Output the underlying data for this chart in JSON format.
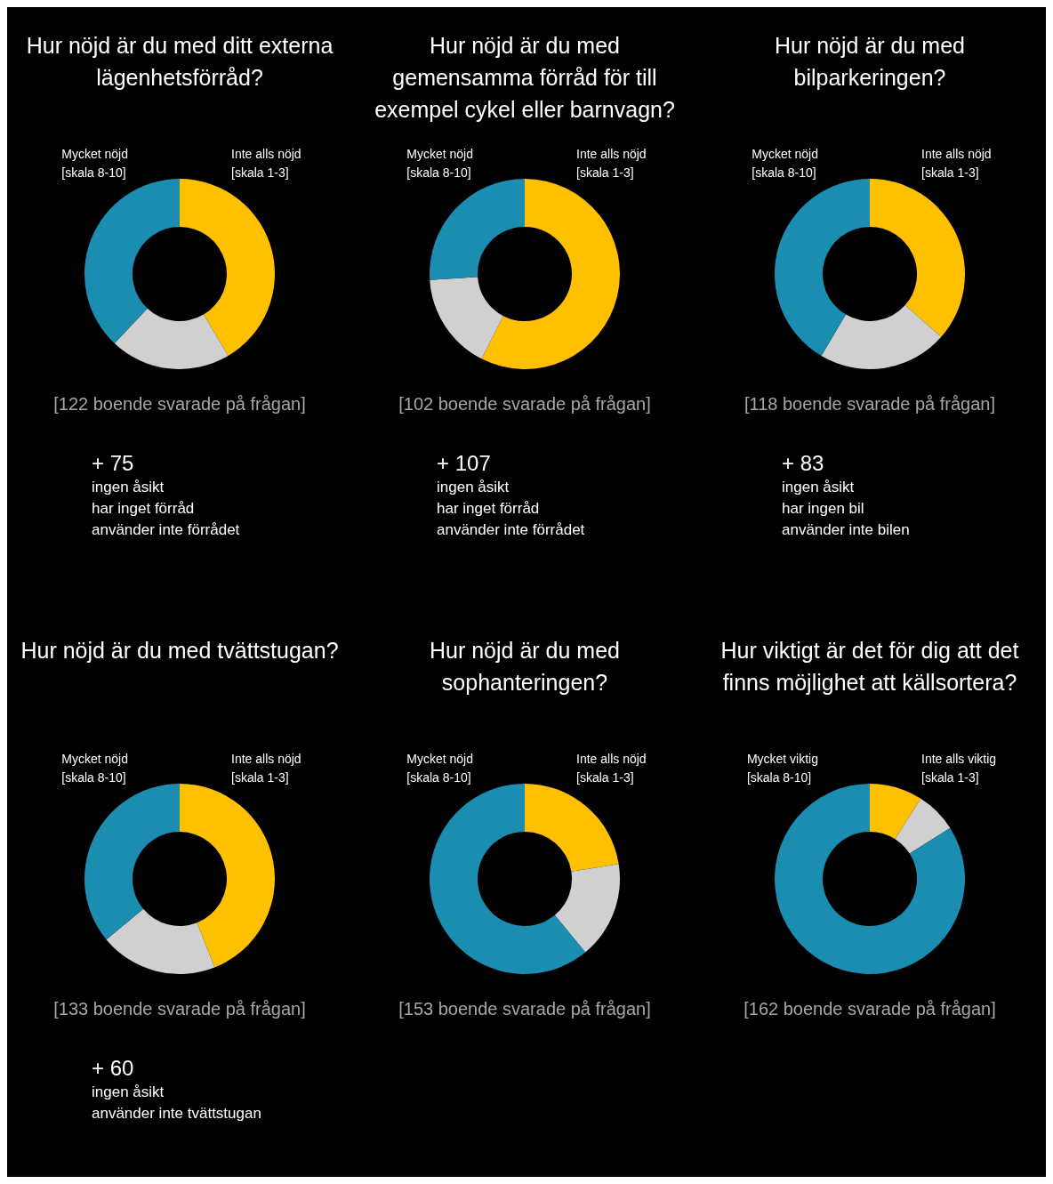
{
  "chart_data": [
    {
      "type": "donut",
      "title": "Hur nöjd är du med ditt externa lägenhetsförråd?",
      "categories": [
        "Inte alls nöjd\n[skala 1-3]",
        null,
        "Mycket nöjd\n[skala 8-10]"
      ],
      "values": [
        41.5,
        20.5,
        38
      ],
      "colors": [
        "#ffc000",
        "#d0d0d0",
        "#1b8db0"
      ],
      "legend": false,
      "annotations": [
        "[122 boende svarade på frågan]",
        "+ 75",
        "ingen åsikt",
        "har inget förråd",
        "använder inte förrådet"
      ]
    },
    {
      "type": "donut",
      "title": "Hur nöjd är du med gemensamma förråd för till exempel cykel eller barnvagn?",
      "categories": [
        "Inte alls nöjd\n[skala 1-3]",
        null,
        "Mycket nöjd\n[skala 8-10]"
      ],
      "values": [
        57.5,
        16.5,
        26
      ],
      "colors": [
        "#ffc000",
        "#d0d0d0",
        "#1b8db0"
      ],
      "legend": false,
      "annotations": [
        "[102 boende svarade på frågan]",
        "+ 107",
        "ingen åsikt",
        "har inget förråd",
        "använder inte förrådet"
      ]
    },
    {
      "type": "donut",
      "title": "Hur nöjd är du med bilparkeringen?",
      "categories": [
        "Inte alls nöjd\n[skala 1-3]",
        null,
        "Mycket nöjd\n[skala 8-10]"
      ],
      "values": [
        36.5,
        22,
        41.5
      ],
      "colors": [
        "#ffc000",
        "#d0d0d0",
        "#1b8db0"
      ],
      "legend": false,
      "annotations": [
        "[118 boende svarade på frågan]",
        "+ 83",
        "ingen åsikt",
        "har ingen bil",
        "använder inte bilen"
      ]
    },
    {
      "type": "donut",
      "title": "Hur nöjd är du med tvättstugan?",
      "categories": [
        "Inte alls nöjd\n[skala 1-3]",
        null,
        "Mycket nöjd\n[skala 8-10]"
      ],
      "values": [
        44,
        20,
        36
      ],
      "colors": [
        "#ffc000",
        "#d0d0d0",
        "#1b8db0"
      ],
      "legend": false,
      "annotations": [
        "[133 boende svarade på frågan]",
        "+ 60",
        "ingen åsikt",
        "använder inte tvättstugan"
      ]
    },
    {
      "type": "donut",
      "title": "Hur nöjd är du med sophanteringen?",
      "categories": [
        "Inte alls nöjd\n[skala 1-3]",
        null,
        "Mycket nöjd\n[skala 8-10]"
      ],
      "values": [
        22.5,
        16.5,
        61
      ],
      "colors": [
        "#ffc000",
        "#d0d0d0",
        "#1b8db0"
      ],
      "legend": false,
      "annotations": [
        "[153 boende svarade på frågan]"
      ]
    },
    {
      "type": "donut",
      "title": "Hur viktigt är det för dig att det finns möjlighet att källsortera?",
      "categories": [
        "Inte alls viktig\n[skala 1-3]",
        null,
        "Mycket viktig\n[skala 8-10]"
      ],
      "values": [
        9,
        7,
        84
      ],
      "colors": [
        "#ffc000",
        "#d0d0d0",
        "#1b8db0"
      ],
      "legend": false,
      "annotations": [
        "[162 boende svarade på frågan]"
      ]
    }
  ]
}
